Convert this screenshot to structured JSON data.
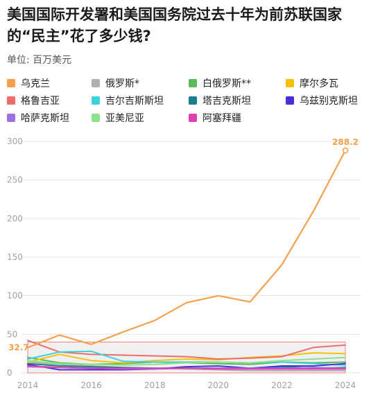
{
  "chart_data": {
    "type": "line",
    "title": "美国国际开发署和美国国务院过去十年为前苏联国家的“民主”花了多少钱?",
    "subtitle": "单位: 百万美元",
    "x": [
      2014,
      2015,
      2016,
      2017,
      2018,
      2019,
      2020,
      2021,
      2022,
      2023,
      2024
    ],
    "xticks": [
      "2014",
      "2016",
      "2018",
      "2020",
      "2022",
      "2024"
    ],
    "yticks": [
      "0",
      "50",
      "100",
      "150",
      "200",
      "250",
      "300"
    ],
    "ylim": [
      0,
      300
    ],
    "grid": true,
    "legend_position": "top",
    "series": [
      {
        "name": "乌克兰",
        "color": "#f4a04c",
        "values": [
          32.7,
          49,
          37,
          53,
          68,
          91,
          100,
          92,
          140,
          210,
          288.2
        ]
      },
      {
        "name": "俄罗斯*",
        "color": "#b0b0b0",
        "values": [
          14,
          11,
          9,
          7,
          6,
          5,
          4,
          3,
          3,
          3,
          3
        ]
      },
      {
        "name": "白俄罗斯**",
        "color": "#5bb85b",
        "values": [
          20,
          13,
          11,
          12,
          14,
          13,
          12,
          11,
          14,
          13,
          14
        ]
      },
      {
        "name": "摩尔多瓦",
        "color": "#f5c20b",
        "values": [
          14,
          24,
          16,
          13,
          16,
          18,
          17,
          20,
          22,
          26,
          25
        ]
      },
      {
        "name": "格鲁吉亚",
        "color": "#ee6e6e",
        "values": [
          42,
          27,
          24,
          23,
          22,
          21,
          18,
          19,
          21,
          33,
          36
        ]
      },
      {
        "name": "吉尔吉斯斯坦",
        "color": "#3dd1dc",
        "values": [
          18,
          27,
          28,
          15,
          14,
          14,
          14,
          13,
          14,
          12,
          10
        ]
      },
      {
        "name": "塔吉克斯坦",
        "color": "#1b7e8a",
        "values": [
          12,
          9,
          8,
          7,
          6,
          6,
          6,
          6,
          8,
          6,
          7
        ]
      },
      {
        "name": "乌兹别克斯坦",
        "color": "#4a2fd6",
        "values": [
          11,
          4,
          4,
          4,
          5,
          8,
          9,
          6,
          9,
          9,
          12
        ]
      },
      {
        "name": "哈萨克斯坦",
        "color": "#9e6fe0",
        "values": [
          8,
          7,
          6,
          5,
          5,
          6,
          6,
          6,
          6,
          7,
          6
        ]
      },
      {
        "name": "亚美尼亚",
        "color": "#8ee28e",
        "values": [
          16,
          12,
          11,
          10,
          11,
          13,
          14,
          13,
          16,
          18,
          20
        ]
      },
      {
        "name": "阿塞拜疆",
        "color": "#e03fae",
        "values": [
          9,
          7,
          6,
          6,
          6,
          6,
          5,
          5,
          5,
          5,
          5
        ]
      }
    ],
    "data_labels": [
      {
        "text": "32.7",
        "series": 0,
        "x": 2014
      },
      {
        "text": "288.2",
        "series": 0,
        "x": 2024
      }
    ],
    "highlight_band": [
      0,
      40
    ]
  }
}
